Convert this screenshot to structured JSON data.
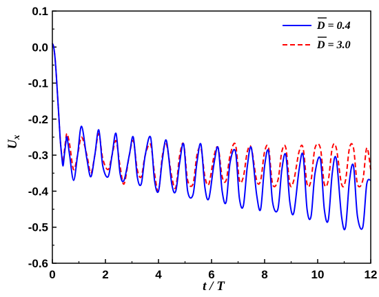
{
  "chart_data": {
    "type": "line",
    "title": "",
    "xlabel": "t / T",
    "ylabel": "U_x",
    "xlim": [
      0,
      12
    ],
    "ylim": [
      -0.6,
      0.1
    ],
    "x_ticks": [
      0,
      2,
      4,
      6,
      8,
      10,
      12
    ],
    "x_tick_labels": [
      "0",
      "2",
      "4",
      "6",
      "8",
      "10",
      "12"
    ],
    "y_ticks": [
      0.1,
      0.0,
      -0.1,
      -0.2,
      -0.3,
      -0.4,
      -0.5,
      -0.6
    ],
    "y_tick_labels": [
      "0.1",
      "0.0",
      "-0.1",
      "-0.2",
      "-0.3",
      "-0.4",
      "-0.5",
      "-0.6"
    ],
    "grid": false,
    "legend_position": "top-right",
    "series": [
      {
        "name": "D̄ = 0.4",
        "legend_label": "D = 0.4",
        "color": "#0000ff",
        "dash": "solid",
        "x": [
          0,
          0.05,
          0.1,
          0.15,
          0.2,
          0.25,
          0.3,
          0.35,
          0.4,
          0.45,
          0.5,
          0.55,
          0.65,
          0.8,
          0.95,
          1.1,
          1.3,
          1.45,
          1.6,
          1.75,
          1.9,
          2.1,
          2.25,
          2.4,
          2.55,
          2.7,
          2.9,
          3.05,
          3.2,
          3.35,
          3.5,
          3.7,
          3.85,
          4.0,
          4.15,
          4.3,
          4.5,
          4.65,
          4.8,
          4.95,
          5.1,
          5.3,
          5.45,
          5.6,
          5.75,
          5.9,
          6.1,
          6.25,
          6.4,
          6.55,
          6.7,
          6.9,
          7.05,
          7.2,
          7.35,
          7.5,
          7.7,
          7.85,
          8.0,
          8.15,
          8.3,
          8.5,
          8.65,
          8.8,
          8.95,
          9.1,
          9.3,
          9.45,
          9.6,
          9.75,
          9.9,
          10.1,
          10.25,
          10.4,
          10.55,
          10.7,
          10.9,
          11.05,
          11.2,
          11.35,
          11.5,
          11.7,
          11.85,
          12.0
        ],
        "y": [
          0.01,
          0.0,
          -0.03,
          -0.08,
          -0.14,
          -0.2,
          -0.26,
          -0.3,
          -0.33,
          -0.3,
          -0.27,
          -0.25,
          -0.3,
          -0.37,
          -0.3,
          -0.22,
          -0.31,
          -0.36,
          -0.3,
          -0.23,
          -0.33,
          -0.36,
          -0.3,
          -0.24,
          -0.35,
          -0.37,
          -0.3,
          -0.25,
          -0.36,
          -0.38,
          -0.3,
          -0.25,
          -0.37,
          -0.4,
          -0.31,
          -0.26,
          -0.38,
          -0.4,
          -0.32,
          -0.27,
          -0.4,
          -0.41,
          -0.32,
          -0.27,
          -0.39,
          -0.42,
          -0.32,
          -0.28,
          -0.4,
          -0.43,
          -0.32,
          -0.29,
          -0.42,
          -0.44,
          -0.33,
          -0.28,
          -0.41,
          -0.45,
          -0.33,
          -0.29,
          -0.43,
          -0.45,
          -0.34,
          -0.3,
          -0.43,
          -0.46,
          -0.34,
          -0.3,
          -0.45,
          -0.47,
          -0.35,
          -0.31,
          -0.45,
          -0.48,
          -0.35,
          -0.31,
          -0.47,
          -0.5,
          -0.37,
          -0.33,
          -0.47,
          -0.5,
          -0.38,
          -0.37
        ]
      },
      {
        "name": "D̄ = 3.0",
        "legend_label": "D = 3.0",
        "color": "#ff0000",
        "dash": "dashed",
        "x": [
          0,
          0.05,
          0.1,
          0.15,
          0.2,
          0.25,
          0.3,
          0.35,
          0.4,
          0.45,
          0.5,
          0.55,
          0.65,
          0.8,
          0.95,
          1.1,
          1.3,
          1.45,
          1.6,
          1.75,
          1.9,
          2.1,
          2.25,
          2.4,
          2.55,
          2.7,
          2.9,
          3.05,
          3.2,
          3.35,
          3.5,
          3.7,
          3.85,
          4.0,
          4.15,
          4.3,
          4.5,
          4.65,
          4.8,
          4.95,
          5.1,
          5.3,
          5.45,
          5.6,
          5.75,
          5.9,
          6.1,
          6.25,
          6.4,
          6.55,
          6.7,
          6.9,
          7.05,
          7.2,
          7.35,
          7.5,
          7.7,
          7.85,
          8.0,
          8.15,
          8.3,
          8.5,
          8.65,
          8.8,
          8.95,
          9.1,
          9.3,
          9.45,
          9.6,
          9.75,
          9.9,
          10.1,
          10.25,
          10.4,
          10.55,
          10.7,
          10.9,
          11.05,
          11.2,
          11.35,
          11.5,
          11.7,
          11.85,
          12.0
        ],
        "y": [
          0.01,
          0.0,
          -0.03,
          -0.08,
          -0.14,
          -0.2,
          -0.26,
          -0.3,
          -0.32,
          -0.29,
          -0.26,
          -0.24,
          -0.27,
          -0.34,
          -0.3,
          -0.25,
          -0.3,
          -0.35,
          -0.3,
          -0.24,
          -0.31,
          -0.34,
          -0.3,
          -0.26,
          -0.33,
          -0.38,
          -0.3,
          -0.26,
          -0.34,
          -0.36,
          -0.3,
          -0.27,
          -0.35,
          -0.4,
          -0.3,
          -0.27,
          -0.36,
          -0.39,
          -0.3,
          -0.27,
          -0.37,
          -0.38,
          -0.3,
          -0.28,
          -0.36,
          -0.38,
          -0.3,
          -0.28,
          -0.36,
          -0.37,
          -0.3,
          -0.27,
          -0.37,
          -0.36,
          -0.29,
          -0.28,
          -0.37,
          -0.37,
          -0.29,
          -0.28,
          -0.38,
          -0.37,
          -0.29,
          -0.28,
          -0.38,
          -0.37,
          -0.29,
          -0.28,
          -0.38,
          -0.37,
          -0.28,
          -0.28,
          -0.38,
          -0.37,
          -0.28,
          -0.28,
          -0.38,
          -0.37,
          -0.28,
          -0.28,
          -0.38,
          -0.37,
          -0.28,
          -0.34
        ]
      }
    ]
  }
}
